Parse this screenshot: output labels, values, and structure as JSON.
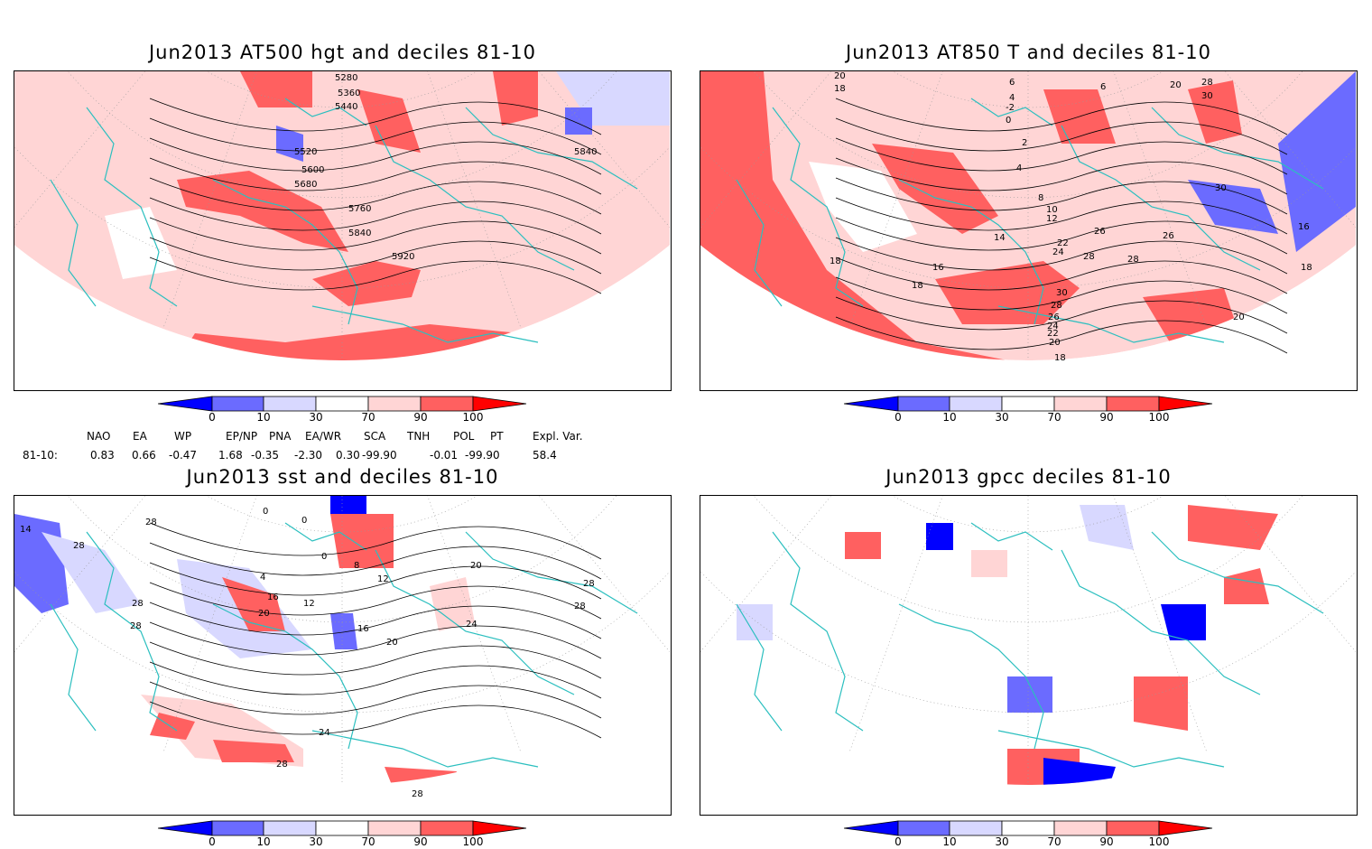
{
  "panels": [
    {
      "title": "Jun2013 AT500 hgt and deciles 81-10",
      "contour_labels": [
        "5280",
        "5360",
        "5440",
        "5520",
        "5600",
        "5680",
        "5760",
        "5840",
        "5840",
        "5920"
      ]
    },
    {
      "title": "Jun2013 AT850 T and deciles 81-10",
      "contour_labels": [
        "20",
        "18",
        "6",
        "4",
        "-2",
        "0",
        "2",
        "4",
        "8",
        "10",
        "12",
        "14",
        "16",
        "18",
        "18",
        "20",
        "22",
        "24",
        "26",
        "28",
        "26",
        "30",
        "28",
        "26",
        "24",
        "22",
        "20",
        "18",
        "20",
        "28",
        "18",
        "16",
        "30",
        "28",
        "30",
        "6"
      ]
    },
    {
      "title": "Jun2013 sst and deciles 81-10",
      "contour_labels": [
        "14",
        "28",
        "28",
        "28",
        "28",
        "24",
        "28",
        "28",
        "0",
        "0",
        "4",
        "8",
        "12",
        "12",
        "16",
        "20",
        "16",
        "20",
        "20",
        "24",
        "28",
        "28",
        "0"
      ]
    },
    {
      "title": "Jun2013 gpcc deciles 81-10",
      "contour_labels": []
    }
  ],
  "colorbar": {
    "labels": [
      "0",
      "10",
      "30",
      "70",
      "90",
      "100"
    ],
    "colors": [
      "#0000ff",
      "#6b6bff",
      "#d8d8ff",
      "#ffffff",
      "#ffd5d5",
      "#ff6060",
      "#ff0000"
    ]
  },
  "indices": {
    "headers": [
      "NAO",
      "EA",
      "WP",
      "EP/NP",
      "PNA",
      "EA/WR",
      "SCA",
      "TNH",
      "POL",
      "PT",
      "Expl. Var."
    ],
    "row_label": "81-10:",
    "values": [
      "0.83",
      "0.66",
      "-0.47",
      "1.68",
      "-0.35",
      "-2.30",
      "0.30",
      "-99.90",
      "-0.01",
      "-99.90",
      "58.4"
    ]
  }
}
